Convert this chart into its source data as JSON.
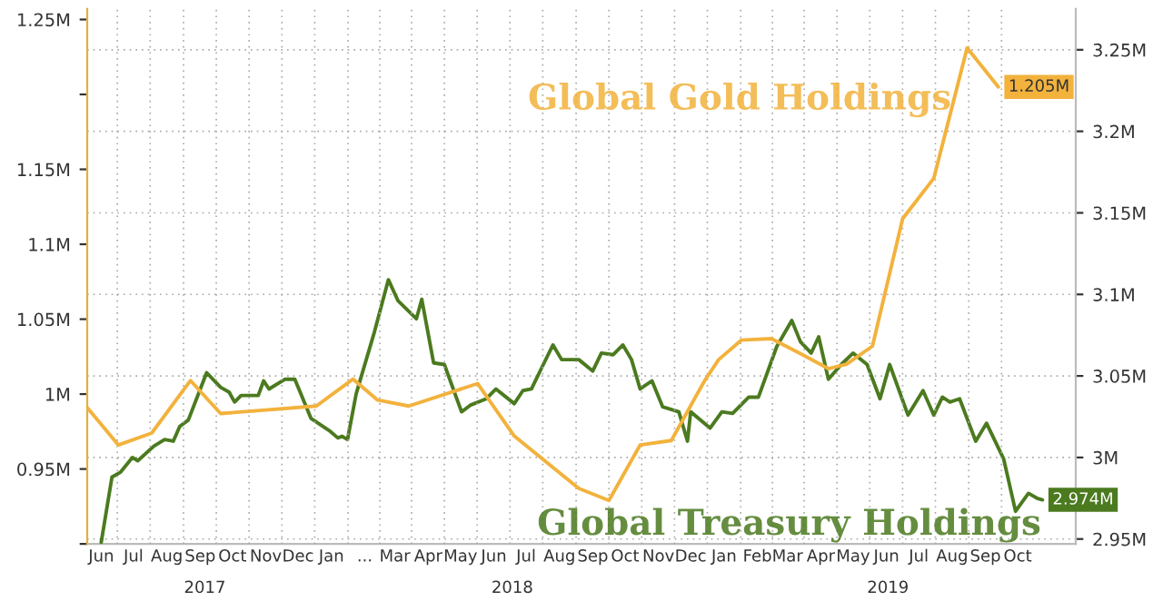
{
  "chart_data": {
    "type": "line",
    "xlim": [
      "2017-06-02",
      "2019-12-08"
    ],
    "xticks": [
      {
        "value": "2017-06-15",
        "label": "Jun"
      },
      {
        "value": "2017-07-15",
        "label": "Jul"
      },
      {
        "value": "2017-08-15",
        "label": "Aug"
      },
      {
        "value": "2017-09-15",
        "label": "Sep"
      },
      {
        "value": "2017-10-15",
        "label": "Oct"
      },
      {
        "value": "2017-11-15",
        "label": "Nov"
      },
      {
        "value": "2017-12-15",
        "label": "Dec"
      },
      {
        "value": "2018-01-15",
        "label": "Jan"
      },
      {
        "value": "2018-02-15",
        "label": "..."
      },
      {
        "value": "2018-03-15",
        "label": "Mar"
      },
      {
        "value": "2018-04-15",
        "label": "Apr"
      },
      {
        "value": "2018-05-15",
        "label": "May"
      },
      {
        "value": "2018-06-15",
        "label": "Jun"
      },
      {
        "value": "2018-07-15",
        "label": "Jul"
      },
      {
        "value": "2018-08-15",
        "label": "Aug"
      },
      {
        "value": "2018-09-15",
        "label": "Sep"
      },
      {
        "value": "2018-10-15",
        "label": "Oct"
      },
      {
        "value": "2018-11-15",
        "label": "Nov"
      },
      {
        "value": "2018-12-15",
        "label": "Dec"
      },
      {
        "value": "2019-01-15",
        "label": "Jan"
      },
      {
        "value": "2019-02-15",
        "label": "Feb"
      },
      {
        "value": "2019-03-15",
        "label": "Mar"
      },
      {
        "value": "2019-04-15",
        "label": "Apr"
      },
      {
        "value": "2019-05-15",
        "label": "May"
      },
      {
        "value": "2019-06-15",
        "label": "Jun"
      },
      {
        "value": "2019-07-15",
        "label": "Jul"
      },
      {
        "value": "2019-08-15",
        "label": "Aug"
      },
      {
        "value": "2019-09-15",
        "label": "Sep"
      },
      {
        "value": "2019-10-15",
        "label": "Oct"
      }
    ],
    "ylim": [
      0.9,
      1.257
    ],
    "yticks": [
      {
        "value": 0.9,
        "label": null
      },
      {
        "value": 0.95,
        "label": "0.95M"
      },
      {
        "value": 1.0,
        "label": "1M"
      },
      {
        "value": 1.05,
        "label": "1.05M"
      },
      {
        "value": 1.1,
        "label": "1.1M"
      },
      {
        "value": 1.15,
        "label": "1.15M"
      },
      {
        "value": 1.2,
        "label": null
      },
      {
        "value": 1.25,
        "label": "1.25M"
      }
    ],
    "y2lim": [
      2.947,
      3.275
    ],
    "y2ticks": [
      {
        "value": 2.95,
        "label": "2.95M"
      },
      {
        "value": 3.0,
        "label": "3M"
      },
      {
        "value": 3.05,
        "label": "3.05M"
      },
      {
        "value": 3.1,
        "label": "3.1M"
      },
      {
        "value": 3.15,
        "label": "3.15M"
      },
      {
        "value": 3.2,
        "label": "3.2M"
      },
      {
        "value": 3.25,
        "label": "3.25M"
      }
    ],
    "grid": true,
    "annotations": [
      "2017",
      "2018",
      "2019"
    ],
    "line_style": "solid",
    "series": [
      {
        "name": "Global Gold Holdings",
        "color": "#f2b23c",
        "axis": "y",
        "x": [
          "2017-06-02",
          "2017-07-01",
          "2017-08-01",
          "2017-09-06",
          "2017-10-04",
          "2018-01-01",
          "2018-02-04",
          "2018-02-27",
          "2018-03-28",
          "2018-05-31",
          "2018-07-04",
          "2018-09-02",
          "2018-09-30",
          "2018-10-29",
          "2018-11-27",
          "2018-12-28",
          "2019-01-10",
          "2019-01-31",
          "2019-02-28",
          "2019-03-27",
          "2019-04-22",
          "2019-05-09",
          "2019-06-02",
          "2019-06-30",
          "2019-07-29",
          "2019-08-29",
          "2019-09-27"
        ],
        "values": [
          0.991,
          0.966,
          0.974,
          1.009,
          0.987,
          0.992,
          1.01,
          0.996,
          0.992,
          1.007,
          0.972,
          0.937,
          0.929,
          0.966,
          0.969,
          1.009,
          1.023,
          1.036,
          1.037,
          1.027,
          1.017,
          1.02,
          1.032,
          1.117,
          1.144,
          1.231,
          1.205
        ],
        "value_labels": [
          null,
          null,
          null,
          null,
          null,
          null,
          null,
          null,
          null,
          null,
          null,
          null,
          null,
          null,
          null,
          null,
          null,
          null,
          null,
          null,
          null,
          null,
          null,
          null,
          null,
          null,
          "1.205M"
        ]
      },
      {
        "name": "Global Treasury Holdings",
        "color": "#4b7a1f",
        "axis": "y2",
        "x": [
          "2017-06-15",
          "2017-06-25",
          "2017-07-03",
          "2017-07-14",
          "2017-07-19",
          "2017-08-03",
          "2017-08-13",
          "2017-08-21",
          "2017-08-27",
          "2017-09-04",
          "2017-09-21",
          "2017-10-04",
          "2017-10-12",
          "2017-10-17",
          "2017-10-23",
          "2017-11-02",
          "2017-11-08",
          "2017-11-13",
          "2017-11-18",
          "2017-12-03",
          "2017-12-12",
          "2017-12-27",
          "2018-01-14",
          "2018-01-21",
          "2018-01-25",
          "2018-01-30",
          "2018-02-07",
          "2018-02-24",
          "2018-03-09",
          "2018-03-18",
          "2018-04-04",
          "2018-04-09",
          "2018-04-20",
          "2018-04-30",
          "2018-05-16",
          "2018-05-24",
          "2018-06-08",
          "2018-06-17",
          "2018-07-04",
          "2018-07-12",
          "2018-07-20",
          "2018-07-31",
          "2018-08-09",
          "2018-08-17",
          "2018-09-02",
          "2018-09-15",
          "2018-09-23",
          "2018-10-04",
          "2018-10-13",
          "2018-10-21",
          "2018-10-29",
          "2018-11-09",
          "2018-11-19",
          "2018-12-04",
          "2018-12-12",
          "2018-12-15",
          "2019-01-02",
          "2019-01-13",
          "2019-01-23",
          "2019-02-07",
          "2019-02-16",
          "2019-03-05",
          "2019-03-19",
          "2019-03-27",
          "2019-04-06",
          "2019-04-13",
          "2019-04-22",
          "2019-05-04",
          "2019-05-15",
          "2019-05-28",
          "2019-06-09",
          "2019-06-18",
          "2019-07-05",
          "2019-07-19",
          "2019-07-29",
          "2019-08-06",
          "2019-08-13",
          "2019-08-22",
          "2019-09-06",
          "2019-09-16",
          "2019-10-02",
          "2019-10-13",
          "2019-10-25",
          "2019-11-02",
          "2019-11-07"
        ],
        "values": [
          2.948,
          2.988,
          2.991,
          3.0,
          2.998,
          3.007,
          3.011,
          3.01,
          3.019,
          3.023,
          3.052,
          3.043,
          3.04,
          3.034,
          3.038,
          3.038,
          3.038,
          3.047,
          3.042,
          3.048,
          3.048,
          3.024,
          3.016,
          3.012,
          3.013,
          3.011,
          3.039,
          3.077,
          3.109,
          3.096,
          3.085,
          3.097,
          3.058,
          3.057,
          3.028,
          3.032,
          3.036,
          3.042,
          3.033,
          3.041,
          3.042,
          3.057,
          3.069,
          3.06,
          3.06,
          3.053,
          3.064,
          3.063,
          3.069,
          3.06,
          3.042,
          3.047,
          3.031,
          3.028,
          3.01,
          3.028,
          3.018,
          3.028,
          3.027,
          3.037,
          3.037,
          3.068,
          3.084,
          3.071,
          3.064,
          3.074,
          3.048,
          3.057,
          3.064,
          3.057,
          3.036,
          3.057,
          3.026,
          3.041,
          3.026,
          3.037,
          3.034,
          3.036,
          3.01,
          3.021,
          2.999,
          2.967,
          2.978,
          2.975,
          2.974
        ],
        "value_labels": [
          null,
          null,
          null,
          null,
          null,
          null,
          null,
          null,
          null,
          null,
          null,
          null,
          null,
          null,
          null,
          null,
          null,
          null,
          null,
          null,
          null,
          null,
          null,
          null,
          null,
          null,
          null,
          null,
          null,
          null,
          null,
          null,
          null,
          null,
          null,
          null,
          null,
          null,
          null,
          null,
          null,
          null,
          null,
          null,
          null,
          null,
          null,
          null,
          null,
          null,
          null,
          null,
          null,
          null,
          null,
          null,
          null,
          null,
          null,
          null,
          null,
          null,
          null,
          null,
          null,
          null,
          null,
          null,
          null,
          null,
          null,
          null,
          null,
          null,
          null,
          null,
          null,
          null,
          null,
          null,
          null,
          null,
          null,
          null,
          "2.974M"
        ]
      }
    ]
  }
}
